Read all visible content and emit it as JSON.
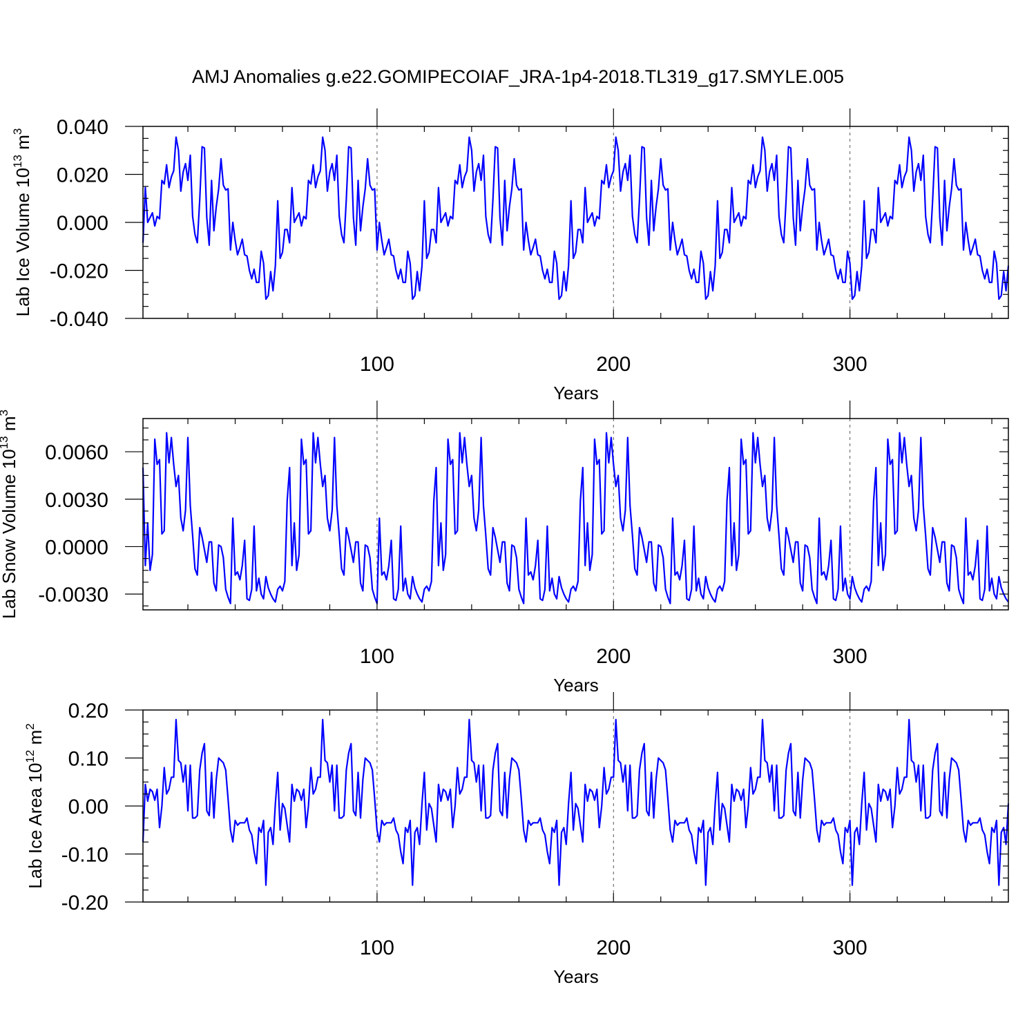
{
  "title": "AMJ Anomalies g.e22.GOMIPECOIAF_JRA-1p4-2018.TL319_g17.SMYLE.005",
  "chart_data": [
    {
      "type": "line",
      "ylabel": "Lab Ice Volume 10",
      "ylabel_exp": "13",
      "ylabel_unit": " m",
      "ylabel_unit_exp": "3",
      "xlabel": "Years",
      "xlim": [
        1,
        367
      ],
      "ylim": [
        -0.04,
        0.04
      ],
      "yticks": [
        -0.04,
        -0.02,
        0.0,
        0.02,
        0.04
      ],
      "ytick_labels": [
        "-0.040",
        "-0.020",
        "0.000",
        "0.020",
        "0.040"
      ],
      "xticks": [
        100,
        200,
        300
      ],
      "xtick_labels": [
        "100",
        "200",
        "300"
      ],
      "period": 62,
      "color": "#0000ff",
      "cycle_values": [
        -0.0085,
        0.0145,
        0.0,
        0.002,
        0.004,
        -0.0015,
        0.0025,
        0.0015,
        0.0175,
        0.016,
        0.024,
        0.0145,
        0.019,
        0.0215,
        0.0355,
        0.03,
        0.013,
        0.021,
        0.0245,
        0.0175,
        0.028,
        0.0025,
        -0.005,
        -0.0085,
        0.0095,
        0.0315,
        0.031,
        0.002,
        -0.0095,
        0.0175,
        -0.0035,
        0.0065,
        0.014,
        0.0265,
        0.0155,
        0.0135,
        0.014,
        -0.0115,
        0.0,
        -0.0075,
        -0.0135,
        -0.0105,
        -0.007,
        -0.0135,
        -0.014,
        -0.02,
        -0.0235,
        -0.0195,
        -0.025,
        -0.025,
        -0.012,
        -0.017,
        -0.032,
        -0.0305,
        -0.0205,
        -0.0285,
        -0.018,
        0.009,
        -0.015,
        -0.0125,
        -0.003,
        -0.003
      ]
    },
    {
      "type": "line",
      "ylabel": "Lab Snow Volume 10",
      "ylabel_exp": "13",
      "ylabel_unit": " m",
      "ylabel_unit_exp": "3",
      "xlabel": "Years",
      "xlim": [
        1,
        367
      ],
      "ylim": [
        -0.004,
        0.0081
      ],
      "yticks": [
        -0.003,
        0.0,
        0.003,
        0.006
      ],
      "ytick_labels": [
        "-0.0030",
        "0.0000",
        "0.0030",
        "0.0060"
      ],
      "xticks": [
        100,
        200,
        300
      ],
      "xtick_labels": [
        "100",
        "200",
        "300"
      ],
      "period": 62,
      "color": "#0000ff",
      "cycle_values": [
        0.005,
        -0.0012,
        0.0015,
        -0.0015,
        -0.0005,
        0.0068,
        0.0052,
        0.0055,
        0.0008,
        0.001,
        0.0072,
        0.0053,
        0.0069,
        0.0052,
        0.0038,
        0.0045,
        0.0018,
        0.001,
        0.0023,
        0.0069,
        0.0026,
        0.0007,
        -0.0014,
        -0.0018,
        0.0012,
        0.0006,
        -0.0002,
        -0.001,
        0.0003,
        0.0003,
        -0.0023,
        -0.0028,
        0.0001,
        0.0,
        -0.0007,
        -0.0027,
        -0.0032,
        -0.0036,
        0.0018,
        -0.0018,
        -0.0016,
        -0.0021,
        -0.0012,
        0.0004,
        -0.0033,
        -0.0034,
        -0.0027,
        0.0013,
        -0.0028,
        -0.002,
        -0.003,
        -0.0033,
        -0.0019,
        -0.0026,
        -0.003,
        -0.0033,
        -0.0035,
        -0.0027,
        -0.0025,
        -0.0028,
        -0.0022,
        0.0029
      ]
    },
    {
      "type": "line",
      "ylabel": "Lab Ice Area 10",
      "ylabel_exp": "12",
      "ylabel_unit": " m",
      "ylabel_unit_exp": "2",
      "xlabel": "Years",
      "xlim": [
        1,
        367
      ],
      "ylim": [
        -0.2,
        0.2
      ],
      "yticks": [
        -0.2,
        -0.1,
        0.0,
        0.1,
        0.2
      ],
      "ytick_labels": [
        "-0.20",
        "-0.10",
        "0.00",
        "0.10",
        "0.20"
      ],
      "xticks": [
        100,
        200,
        300
      ],
      "xtick_labels": [
        "100",
        "200",
        "300"
      ],
      "period": 62,
      "color": "#0000ff",
      "cycle_values": [
        -0.075,
        0.045,
        0.01,
        0.035,
        0.03,
        0.012,
        0.035,
        -0.045,
        0.0,
        0.08,
        0.025,
        0.035,
        0.06,
        0.06,
        0.18,
        0.095,
        0.09,
        0.05,
        0.085,
        -0.01,
        0.085,
        -0.025,
        -0.025,
        -0.02,
        0.075,
        0.11,
        0.13,
        -0.01,
        -0.02,
        0.07,
        -0.025,
        0.055,
        0.1,
        0.095,
        0.09,
        0.075,
        0.015,
        -0.05,
        -0.075,
        -0.03,
        -0.04,
        -0.035,
        -0.035,
        -0.035,
        -0.025,
        -0.05,
        -0.06,
        -0.095,
        -0.12,
        -0.045,
        -0.055,
        -0.03,
        -0.165,
        -0.055,
        -0.045,
        -0.08,
        0.005,
        0.07,
        -0.05,
        0.005,
        -0.005,
        -0.04
      ]
    }
  ]
}
